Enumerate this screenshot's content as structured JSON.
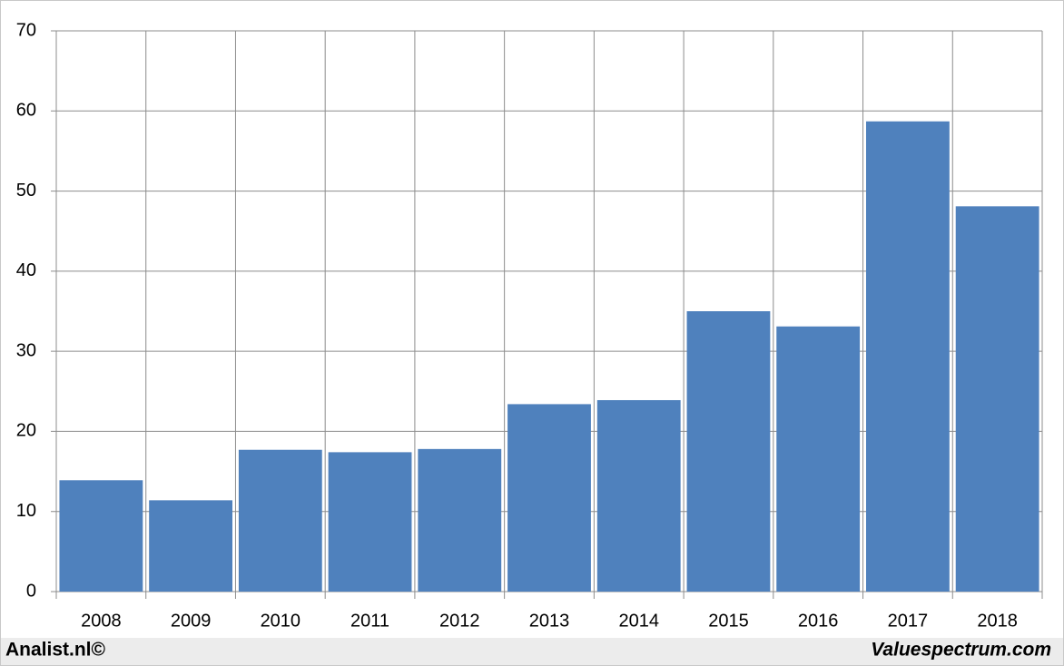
{
  "chart_data": {
    "type": "bar",
    "categories": [
      "2008",
      "2009",
      "2010",
      "2011",
      "2012",
      "2013",
      "2014",
      "2015",
      "2016",
      "2017",
      "2018"
    ],
    "values": [
      13.9,
      11.4,
      17.7,
      17.4,
      17.8,
      23.4,
      23.9,
      35.0,
      33.1,
      58.7,
      48.1
    ],
    "color": "#4f81bd",
    "ylim": [
      0,
      70
    ],
    "yticks": [
      0,
      10,
      20,
      30,
      40,
      50,
      60,
      70
    ],
    "grid": true,
    "footer_left": "Analist.nl©",
    "footer_right": "Valuespectrum.com"
  }
}
